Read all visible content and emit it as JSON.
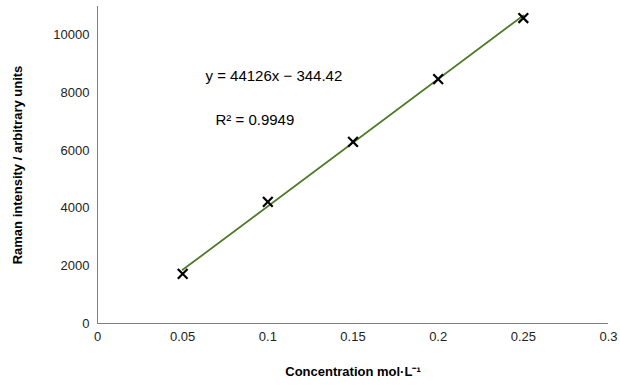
{
  "chart_data": {
    "type": "scatter",
    "x_label": "Concentration mol·L⁻¹",
    "y_label": "Raman intensity / arbitrary units",
    "x": [
      0.05,
      0.1,
      0.15,
      0.2,
      0.25
    ],
    "values": [
      1720,
      4220,
      6300,
      8480,
      10600
    ],
    "color": "#000000",
    "marker": "x",
    "xlim": [
      0,
      0.3
    ],
    "xticks": [
      0,
      0.05,
      0.1,
      0.15,
      0.2,
      0.25,
      0.3
    ],
    "ylim": [
      0,
      11000
    ],
    "yticks": [
      0,
      2000,
      4000,
      6000,
      8000,
      10000
    ],
    "grid": false,
    "trendline": {
      "slope": 44126,
      "intercept": -344.42,
      "color": "#4f7a28"
    },
    "annotations": [
      "y = 44126x − 344.42",
      "R² = 0.9949"
    ]
  }
}
